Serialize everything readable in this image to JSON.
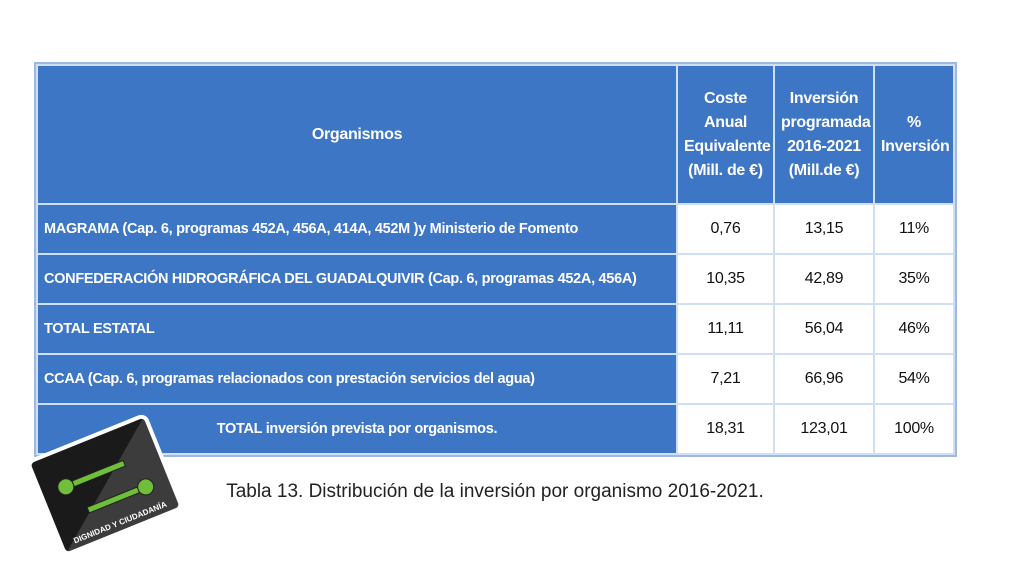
{
  "table": {
    "header": {
      "organismos": "Organismos",
      "coste": [
        "Coste",
        "Anual",
        "Equivalente",
        "(Mill. de €)"
      ],
      "inversion": [
        "Inversión",
        "programada",
        "2016-2021",
        "(Mill.de €)"
      ],
      "porcentaje": [
        "%",
        "Inversión"
      ]
    },
    "rows": [
      [
        "MAGRAMA (Cap. 6, programas 452A, 456A, 414A, 452M )y Ministerio de Fomento",
        "0,76",
        "13,15",
        "11%"
      ],
      [
        "CONFEDERACIÓN HIDROGRÁFICA DEL GUADALQUIVIR (Cap. 6, programas 452A, 456A)",
        "10,35",
        "42,89",
        "35%"
      ],
      [
        "TOTAL ESTATAL",
        "11,11",
        "56,04",
        "46%"
      ],
      [
        "CCAA (Cap. 6, programas relacionados con prestación servicios del agua)",
        "7,21",
        "66,96",
        "54%"
      ],
      [
        "TOTAL  inversión prevista por organismos.",
        "18,31",
        "123,01",
        "100%"
      ]
    ]
  },
  "caption": "Tabla 13. Distribución de la inversión por organismo 2016-2021.",
  "logo": {
    "text": "DIGNIDAD Y CIUDADANÍA"
  }
}
